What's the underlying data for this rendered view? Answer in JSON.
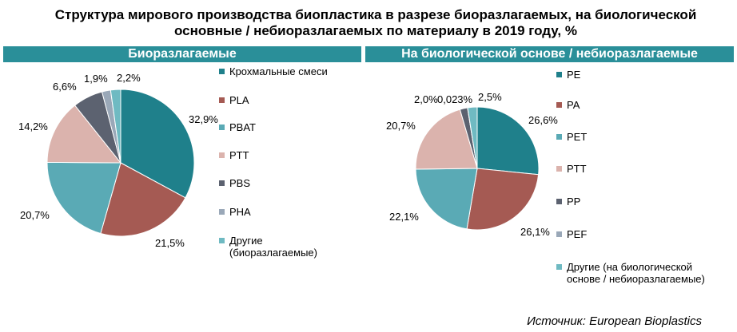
{
  "title": "Структура мирового производства биопластика в разрезе биоразлагаемых, на биологической основные / небиоразлагаемых по материалу в 2019 году, %",
  "source": "Источник: European Bioplastics",
  "chart_data": [
    {
      "type": "pie",
      "title": "Биоразлагаемые",
      "start_angle_deg": 0,
      "categories": [
        "Крохмальные смеси",
        "PLA",
        "PBAT",
        "PTT",
        "PBS",
        "PHA",
        "Другие (биоразлагаемые)"
      ],
      "values": [
        32.9,
        21.5,
        20.7,
        14.2,
        6.6,
        1.9,
        2.2
      ],
      "labels": [
        "32,9%",
        "21,5%",
        "20,7%",
        "14,2%",
        "6,6%",
        "1,9%",
        "2,2%"
      ],
      "colors": [
        "#1f808b",
        "#a55a53",
        "#5aaab5",
        "#dbb3ad",
        "#5c6270",
        "#9aa8b8",
        "#6fbac2"
      ],
      "legend_position": "right"
    },
    {
      "type": "pie",
      "title": "На биологической основе / небиоразлагаемые",
      "start_angle_deg": 0,
      "categories": [
        "PE",
        "PA",
        "PET",
        "PTT",
        "PP",
        "PEF",
        "Другие (на биологической основе / небиоразлагаемые)"
      ],
      "values": [
        26.6,
        26.1,
        22.1,
        20.7,
        2.0,
        0.023,
        2.5
      ],
      "labels": [
        "26,6%",
        "26,1%",
        "22,1%",
        "20,7%",
        "2,0%",
        "0,023%",
        "2,5%"
      ],
      "colors": [
        "#1f808b",
        "#a55a53",
        "#5aaab5",
        "#dbb3ad",
        "#5c6270",
        "#9aa8b8",
        "#6fbac2"
      ],
      "legend_position": "right"
    }
  ],
  "legend_left": [
    {
      "text": "Крохмальные смеси"
    },
    {
      "text": "PLA"
    },
    {
      "text": "PBAT"
    },
    {
      "text": "PTT"
    },
    {
      "text": "PBS"
    },
    {
      "text": "PHA"
    },
    {
      "text": "Другие",
      "text2": "(биоразлагаемые)"
    }
  ],
  "legend_right": [
    {
      "text": "PE"
    },
    {
      "text": "PA"
    },
    {
      "text": "PET"
    },
    {
      "text": "PTT"
    },
    {
      "text": "PP"
    },
    {
      "text": "PEF"
    },
    {
      "text": "Другие (на биологической",
      "text2": "основе / небиоразлагаемые)"
    }
  ]
}
